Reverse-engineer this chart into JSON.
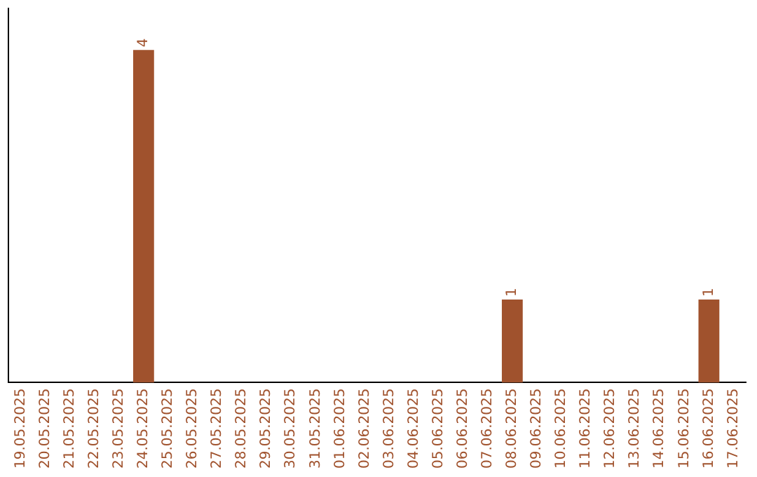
{
  "chart_data": {
    "type": "bar",
    "categories": [
      "19.05.2025",
      "20.05.2025",
      "21.05.2025",
      "22.05.2025",
      "23.05.2025",
      "24.05.2025",
      "25.05.2025",
      "26.05.2025",
      "27.05.2025",
      "28.05.2025",
      "29.05.2025",
      "30.05.2025",
      "31.05.2025",
      "01.06.2025",
      "02.06.2025",
      "03.06.2025",
      "04.06.2025",
      "05.06.2025",
      "06.06.2025",
      "07.06.2025",
      "08.06.2025",
      "09.06.2025",
      "10.06.2025",
      "11.06.2025",
      "12.06.2025",
      "13.06.2025",
      "14.06.2025",
      "15.06.2025",
      "16.06.2025",
      "17.06.2025"
    ],
    "values": [
      0,
      0,
      0,
      0,
      0,
      4,
      0,
      0,
      0,
      0,
      0,
      0,
      0,
      0,
      0,
      0,
      0,
      0,
      0,
      0,
      1,
      0,
      0,
      0,
      0,
      0,
      0,
      0,
      1,
      0
    ],
    "value_labels": [
      null,
      null,
      null,
      null,
      null,
      "4",
      null,
      null,
      null,
      null,
      null,
      null,
      null,
      null,
      null,
      null,
      null,
      null,
      null,
      null,
      "1",
      null,
      null,
      null,
      null,
      null,
      null,
      null,
      "1",
      null
    ],
    "color": "#a0522d",
    "grid": false,
    "legend": false,
    "tick_labels": "x"
  }
}
